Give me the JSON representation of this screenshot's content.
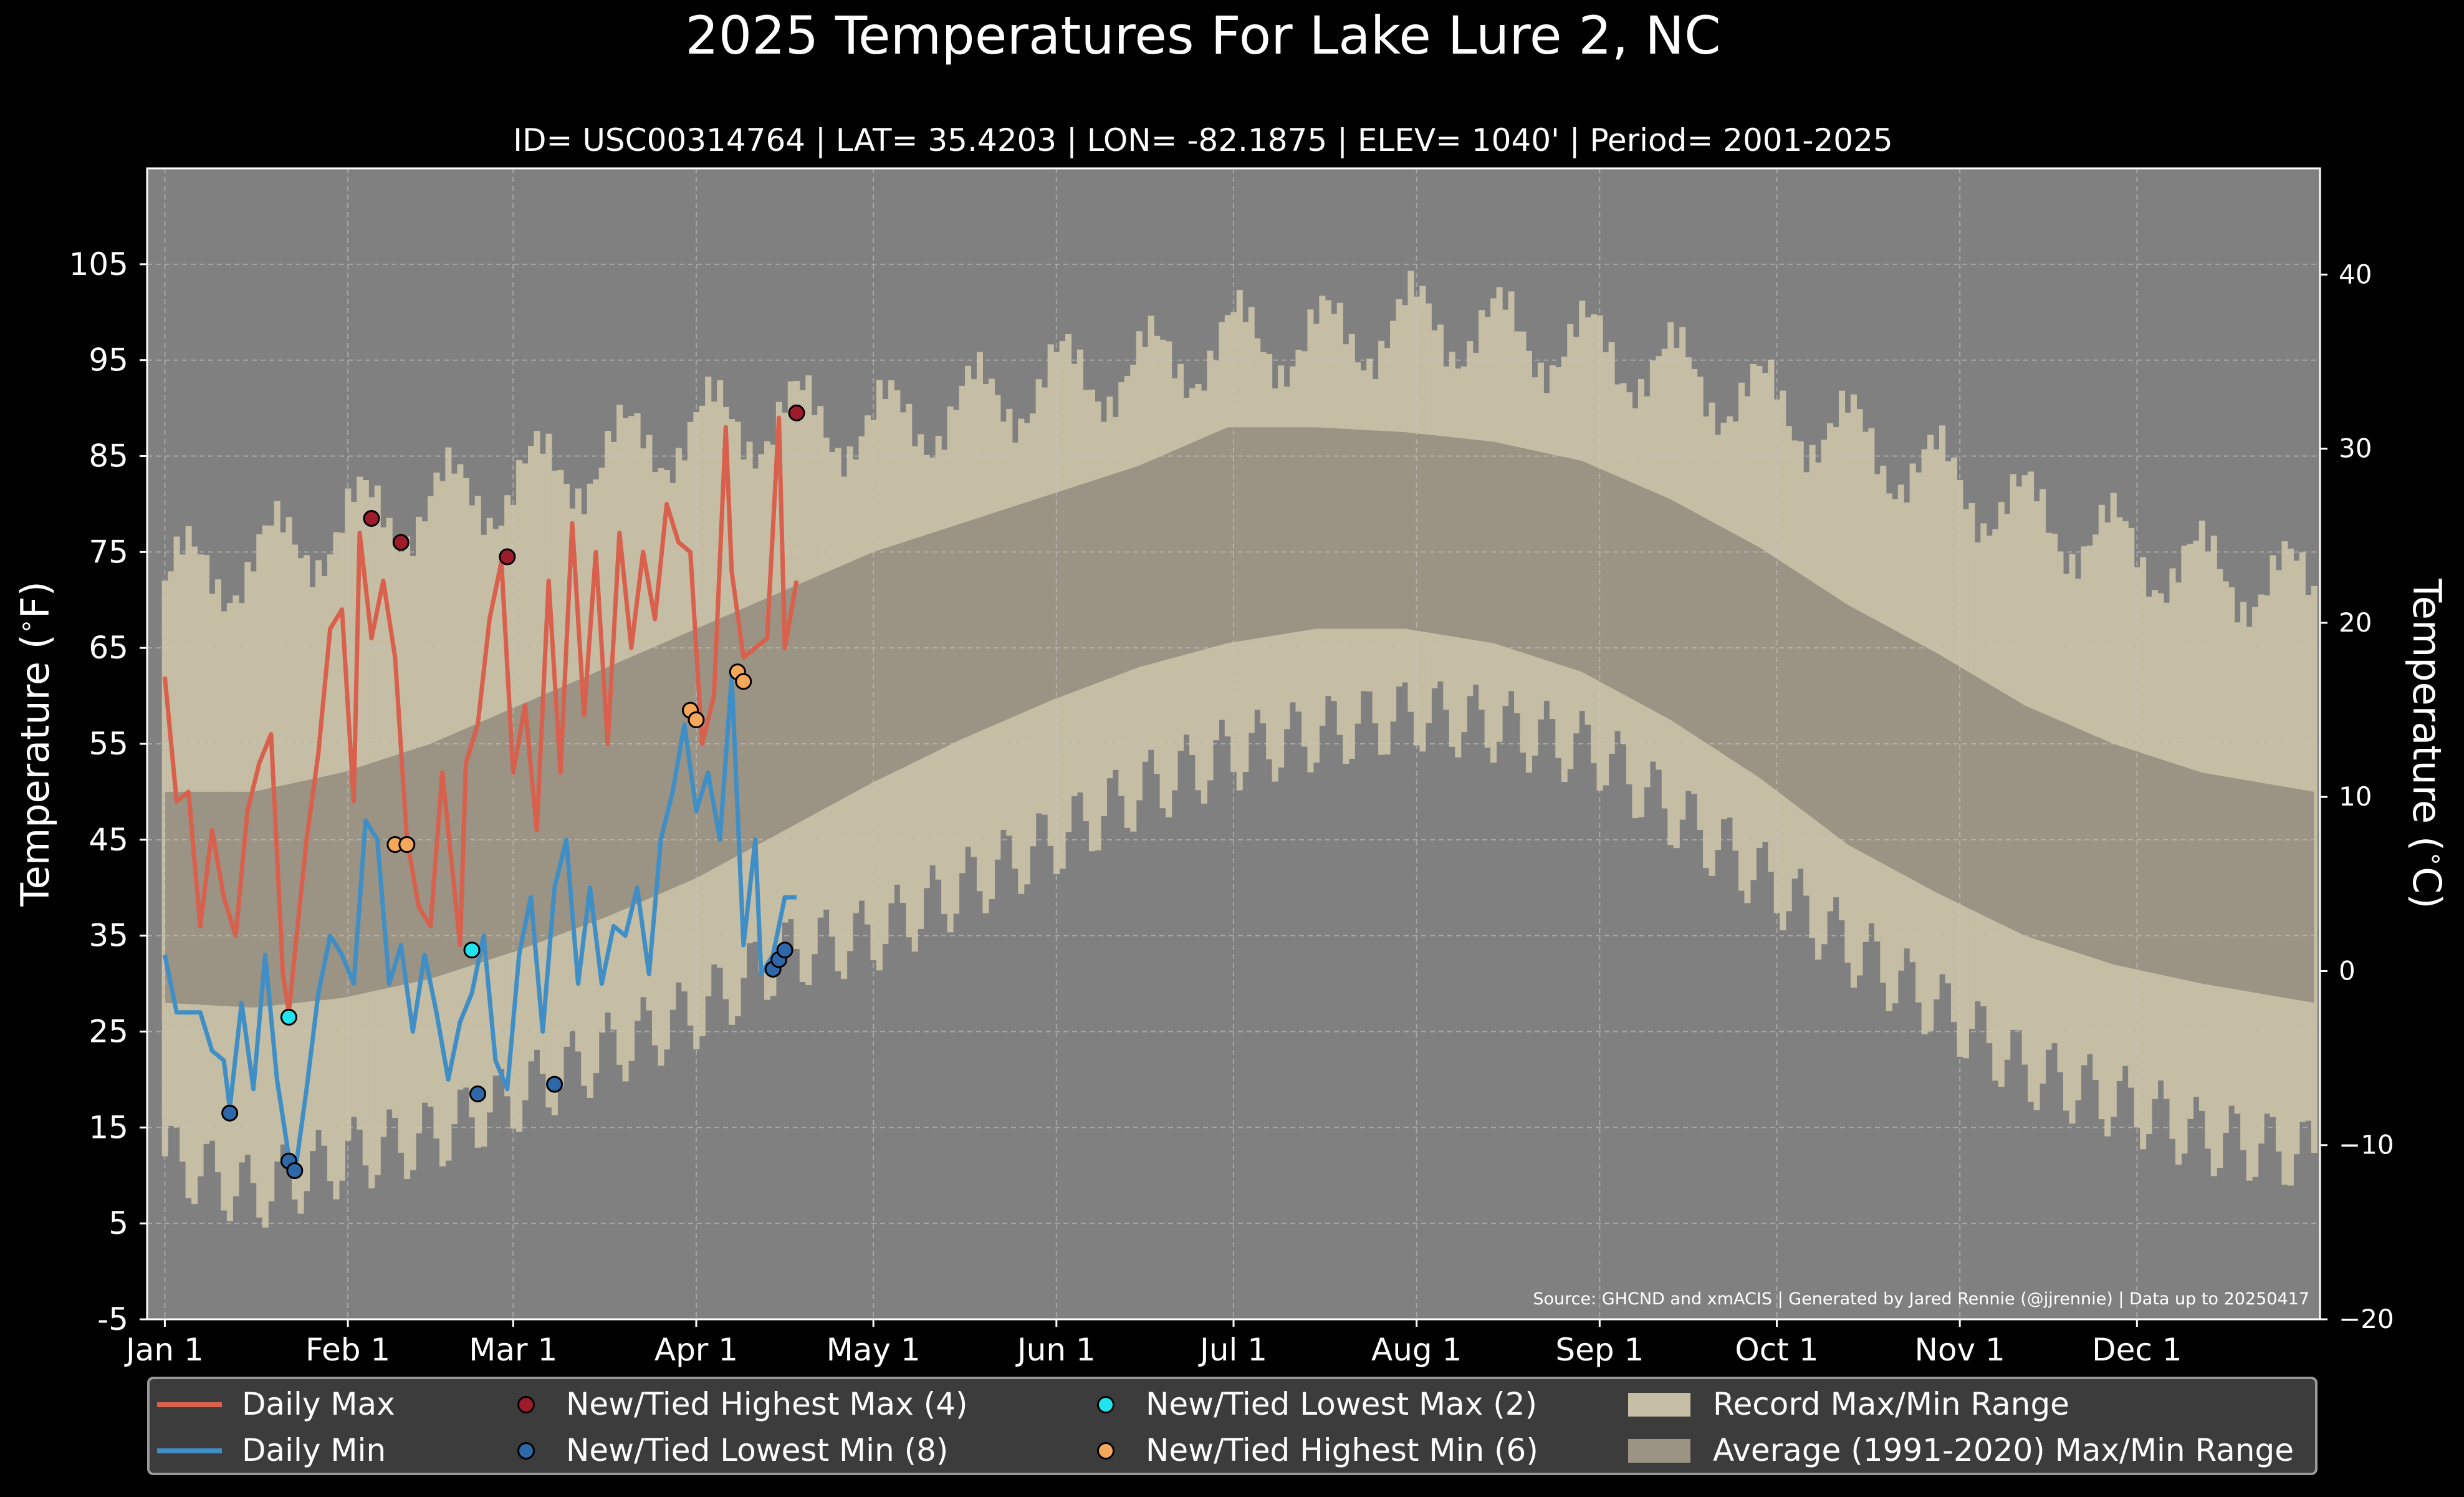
{
  "title": "2025 Temperatures For Lake Lure 2, NC",
  "subtitle": "ID= USC00314764 | LAT= 35.4203 | LON= -82.1875 | ELEV= 1040' | Period= 2001-2025",
  "source_note": "Source: GHCND and xmACIS | Generated by Jared Rennie (@jjrennie) | Data up to 20250417",
  "legend": {
    "daily_max": "Daily Max",
    "daily_min": "Daily Min",
    "new_high_max": "New/Tied Highest Max (4)",
    "new_low_min": "New/Tied Lowest Min (8)",
    "new_low_max": "New/Tied Lowest Max (2)",
    "new_high_min": "New/Tied Highest Min (6)",
    "record_range": "Record Max/Min Range",
    "average_range": "Average (1991-2020) Max/Min Range"
  },
  "colors": {
    "background": "#000000",
    "plot_bg": "#808080",
    "record_band": "#c5bda4",
    "normal_band": "#9b9383",
    "daily_max": "#d9604c",
    "daily_min": "#3f8fc6",
    "high_max_dot": "#9e1b2b",
    "low_min_dot": "#2f68a8",
    "low_max_dot": "#1fe3ee",
    "high_min_dot": "#f6a85a"
  },
  "chart_data": {
    "type": "line",
    "ylabel": "Temperature ($^\\circ$F)",
    "ylabel_right": "Temperature ($^\\circ$C)",
    "ylim": [
      -5,
      115
    ],
    "yticks": [
      -5,
      5,
      15,
      25,
      35,
      45,
      55,
      65,
      75,
      85,
      95,
      105
    ],
    "ylim_right": [
      -20,
      46.1
    ],
    "yticks_right": [
      -20,
      -10,
      0,
      10,
      20,
      30,
      40
    ],
    "xlim": [
      -3,
      365
    ],
    "xticks": [
      0,
      31,
      59,
      90,
      120,
      151,
      181,
      212,
      243,
      273,
      304,
      334
    ],
    "xtick_labels": [
      "Jan 1",
      "Feb 1",
      "Mar 1",
      "Apr 1",
      "May 1",
      "Jun 1",
      "Jul 1",
      "Aug 1",
      "Sep 1",
      "Oct 1",
      "Nov 1",
      "Dec 1"
    ],
    "grid": true,
    "legend_position": "bottom",
    "normal_band": {
      "x": [
        0,
        15,
        30,
        45,
        60,
        75,
        90,
        105,
        120,
        135,
        150,
        165,
        180,
        195,
        210,
        225,
        240,
        255,
        270,
        285,
        300,
        315,
        330,
        345,
        364
      ],
      "max": [
        50,
        50,
        52,
        55,
        59,
        63,
        67,
        71,
        75,
        78,
        81,
        84,
        88,
        88,
        87.5,
        86.5,
        84.5,
        80.5,
        75.5,
        69.5,
        64.5,
        59,
        55,
        52,
        50
      ],
      "min": [
        28,
        27.5,
        28.5,
        30.5,
        33.5,
        37,
        41,
        46,
        51,
        55.5,
        59.5,
        63,
        65.5,
        67,
        67,
        65.5,
        62.5,
        57.5,
        51.5,
        44.5,
        39.5,
        35,
        32,
        30,
        28
      ]
    },
    "record_band": {
      "x": [
        0,
        15,
        31,
        45,
        59,
        75,
        90,
        105,
        120,
        135,
        151,
        165,
        181,
        195,
        212,
        225,
        243,
        255,
        273,
        285,
        304,
        315,
        334,
        345,
        364
      ],
      "max": [
        72,
        74,
        78,
        80,
        82,
        85,
        88,
        89,
        88,
        90,
        93,
        94,
        97,
        97,
        99,
        98,
        96,
        94,
        90,
        87,
        82,
        79,
        75,
        73,
        71
      ],
      "min": [
        12,
        8,
        12,
        14,
        18,
        23,
        27,
        33,
        35,
        40,
        45,
        50,
        54,
        56,
        58,
        57,
        54,
        48,
        40,
        34,
        26,
        21,
        17,
        14,
        12
      ]
    },
    "series": [
      {
        "name": "Daily Max",
        "x": [
          0,
          2,
          4,
          6,
          8,
          10,
          12,
          14,
          16,
          18,
          20,
          21,
          24,
          26,
          28,
          30,
          32,
          33,
          35,
          37,
          39,
          41,
          43,
          45,
          47,
          48,
          50,
          51,
          53,
          55,
          57,
          59,
          61,
          63,
          65,
          67,
          69,
          71,
          73,
          75,
          77,
          79,
          81,
          83,
          85,
          87,
          89,
          91,
          93,
          95,
          96,
          98,
          100,
          102,
          104,
          105,
          107
        ],
        "y": [
          62,
          49,
          50,
          36,
          46,
          39,
          35,
          48,
          53,
          56,
          31,
          27,
          45,
          54,
          67,
          69,
          49,
          77,
          66,
          72,
          64,
          45,
          38,
          36,
          52,
          46,
          34,
          53,
          57,
          68,
          74,
          52,
          59,
          46,
          72,
          52,
          78,
          58,
          75,
          55,
          77,
          65,
          75,
          68,
          80,
          76,
          75,
          55,
          60,
          88,
          73,
          64,
          65,
          66,
          89,
          65,
          72
        ]
      },
      {
        "name": "Daily Min",
        "x": [
          0,
          2,
          4,
          6,
          8,
          10,
          11,
          13,
          15,
          17,
          19,
          21,
          22,
          24,
          26,
          28,
          30,
          32,
          34,
          36,
          38,
          40,
          42,
          44,
          46,
          48,
          50,
          52,
          54,
          56,
          58,
          60,
          62,
          64,
          66,
          68,
          70,
          72,
          74,
          76,
          78,
          80,
          82,
          84,
          86,
          88,
          90,
          92,
          94,
          96,
          98,
          100,
          101,
          103,
          105,
          107
        ],
        "y": [
          33,
          27,
          27,
          27,
          23,
          22,
          17,
          28,
          19,
          33,
          20,
          12,
          10,
          19,
          29,
          35,
          33,
          30,
          47,
          45,
          30,
          34,
          25,
          33,
          27,
          20,
          26,
          29,
          35,
          22,
          19,
          33,
          39,
          25,
          40,
          45,
          30,
          40,
          30,
          36,
          35,
          40,
          31,
          45,
          50,
          57,
          48,
          52,
          45,
          62,
          34,
          45,
          31,
          33,
          39,
          39
        ]
      }
    ],
    "markers": [
      {
        "name": "New/Tied Highest Max (4)",
        "x": [
          35,
          40,
          58,
          107
        ],
        "y": [
          78.5,
          76,
          74.5,
          89.5
        ]
      },
      {
        "name": "New/Tied Lowest Min (8)",
        "x": [
          11,
          21,
          22,
          53,
          66,
          103,
          104,
          105
        ],
        "y": [
          16.5,
          11.5,
          10.5,
          18.5,
          19.5,
          31.5,
          32.5,
          33.5
        ]
      },
      {
        "name": "New/Tied Lowest Max (2)",
        "x": [
          21,
          52
        ],
        "y": [
          26.5,
          33.5
        ]
      },
      {
        "name": "New/Tied Highest Min (6)",
        "x": [
          39,
          41,
          89,
          90,
          97,
          98
        ],
        "y": [
          44.5,
          44.5,
          58.5,
          57.5,
          62.5,
          61.5
        ]
      }
    ]
  }
}
